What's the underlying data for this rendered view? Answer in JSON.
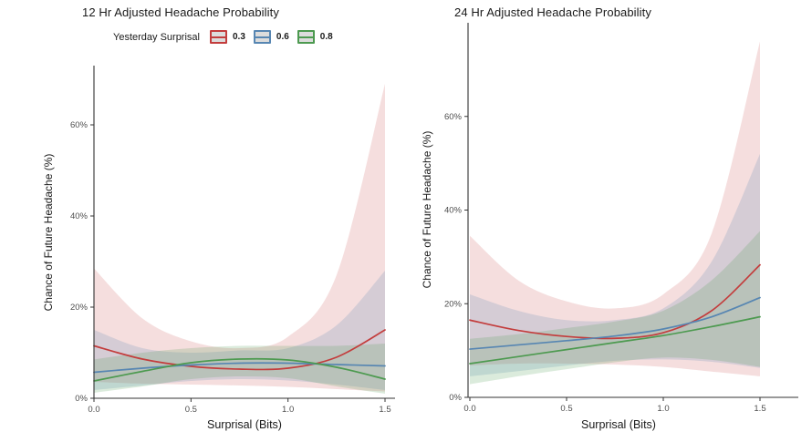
{
  "figure": {
    "background": "#ffffff",
    "legend": {
      "title": "Yesterday Surprisal",
      "key_fill": "#dcdcdc",
      "items": [
        {
          "label": "0.3",
          "color": "#c33d3d"
        },
        {
          "label": "0.6",
          "color": "#5786b2"
        },
        {
          "label": "0.8",
          "color": "#4d9a50"
        }
      ]
    },
    "text_color": "#1a1a1a",
    "tick_label_color": "#4d4d4d",
    "axis_color": "#333333"
  },
  "chart_data": [
    {
      "type": "line",
      "title": "12 Hr Adjusted Headache Probability",
      "xlabel": "Surprisal (Bits)",
      "ylabel": "Chance of Future Headache (%)",
      "xlim": [
        0,
        1.5
      ],
      "ylim": [
        0,
        73
      ],
      "grid": false,
      "legend_position": "top",
      "x_ticks": {
        "values": [
          0,
          0.5,
          1.0,
          1.5
        ],
        "labels": [
          "0.0",
          "0.5",
          "1.0",
          "1.5"
        ]
      },
      "y_ticks": {
        "values": [
          0,
          20,
          40,
          60
        ],
        "labels": [
          "0%",
          "20%",
          "40%",
          "60%"
        ]
      },
      "x": [
        0,
        0.25,
        0.5,
        0.75,
        1.0,
        1.25,
        1.5
      ],
      "series": [
        {
          "name": "0.3",
          "color": "#c33d3d",
          "ribbon_alpha": 0.17,
          "line": [
            11.5,
            8.6,
            7.0,
            6.4,
            6.6,
            9.0,
            15.0
          ],
          "lower": [
            3.6,
            3.2,
            3.0,
            2.8,
            2.5,
            2.0,
            1.5
          ],
          "upper": [
            28.5,
            17.5,
            12.5,
            11.0,
            13.5,
            27.0,
            69.0
          ]
        },
        {
          "name": "0.6",
          "color": "#5786b2",
          "ribbon_alpha": 0.2,
          "line": [
            5.7,
            6.6,
            7.3,
            7.7,
            7.7,
            7.4,
            7.1
          ],
          "lower": [
            1.8,
            2.8,
            3.8,
            4.2,
            3.9,
            3.0,
            1.8
          ],
          "upper": [
            15.0,
            11.0,
            10.0,
            10.5,
            11.0,
            16.0,
            28.0
          ]
        },
        {
          "name": "0.8",
          "color": "#4d9a50",
          "ribbon_alpha": 0.2,
          "line": [
            3.8,
            5.9,
            7.8,
            8.6,
            8.4,
            6.8,
            4.2
          ],
          "lower": [
            1.2,
            2.6,
            4.2,
            4.8,
            4.4,
            2.6,
            1.0
          ],
          "upper": [
            8.5,
            10.0,
            11.0,
            11.5,
            11.5,
            11.5,
            12.0
          ]
        }
      ]
    },
    {
      "type": "line",
      "title": "24 Hr Adjusted Headache Probability",
      "xlabel": "Surprisal (Bits)",
      "ylabel": "Chance of Future Headache (%)",
      "xlim": [
        0,
        1.5
      ],
      "ylim": [
        0,
        80
      ],
      "grid": false,
      "legend_position": "none",
      "x_ticks": {
        "values": [
          0,
          0.5,
          1.0,
          1.5
        ],
        "labels": [
          "0.0",
          "0.5",
          "1.0",
          "1.5"
        ]
      },
      "y_ticks": {
        "values": [
          0,
          20,
          40,
          60
        ],
        "labels": [
          "0%",
          "20%",
          "40%",
          "60%"
        ]
      },
      "x": [
        0,
        0.25,
        0.5,
        0.75,
        1.0,
        1.25,
        1.5
      ],
      "series": [
        {
          "name": "0.3",
          "color": "#c33d3d",
          "ribbon_alpha": 0.17,
          "line": [
            16.5,
            14.3,
            13.0,
            12.6,
            13.8,
            18.5,
            28.3
          ],
          "lower": [
            6.8,
            7.2,
            7.2,
            7.0,
            6.5,
            5.5,
            4.5
          ],
          "upper": [
            34.5,
            25.0,
            20.5,
            19.0,
            22.0,
            35.0,
            76.0
          ]
        },
        {
          "name": "0.6",
          "color": "#5786b2",
          "ribbon_alpha": 0.2,
          "line": [
            10.3,
            11.2,
            12.1,
            13.1,
            14.6,
            17.2,
            21.3
          ],
          "lower": [
            4.5,
            5.6,
            6.8,
            7.8,
            8.1,
            7.6,
            6.3
          ],
          "upper": [
            22.0,
            18.5,
            16.5,
            16.5,
            19.0,
            29.0,
            52.0
          ]
        },
        {
          "name": "0.8",
          "color": "#4d9a50",
          "ribbon_alpha": 0.2,
          "line": [
            7.2,
            8.7,
            10.2,
            11.7,
            13.2,
            15.1,
            17.2
          ],
          "lower": [
            2.8,
            4.5,
            6.0,
            7.5,
            8.5,
            8.0,
            6.5
          ],
          "upper": [
            12.5,
            13.5,
            14.8,
            16.2,
            18.5,
            25.0,
            35.5
          ]
        }
      ]
    }
  ]
}
